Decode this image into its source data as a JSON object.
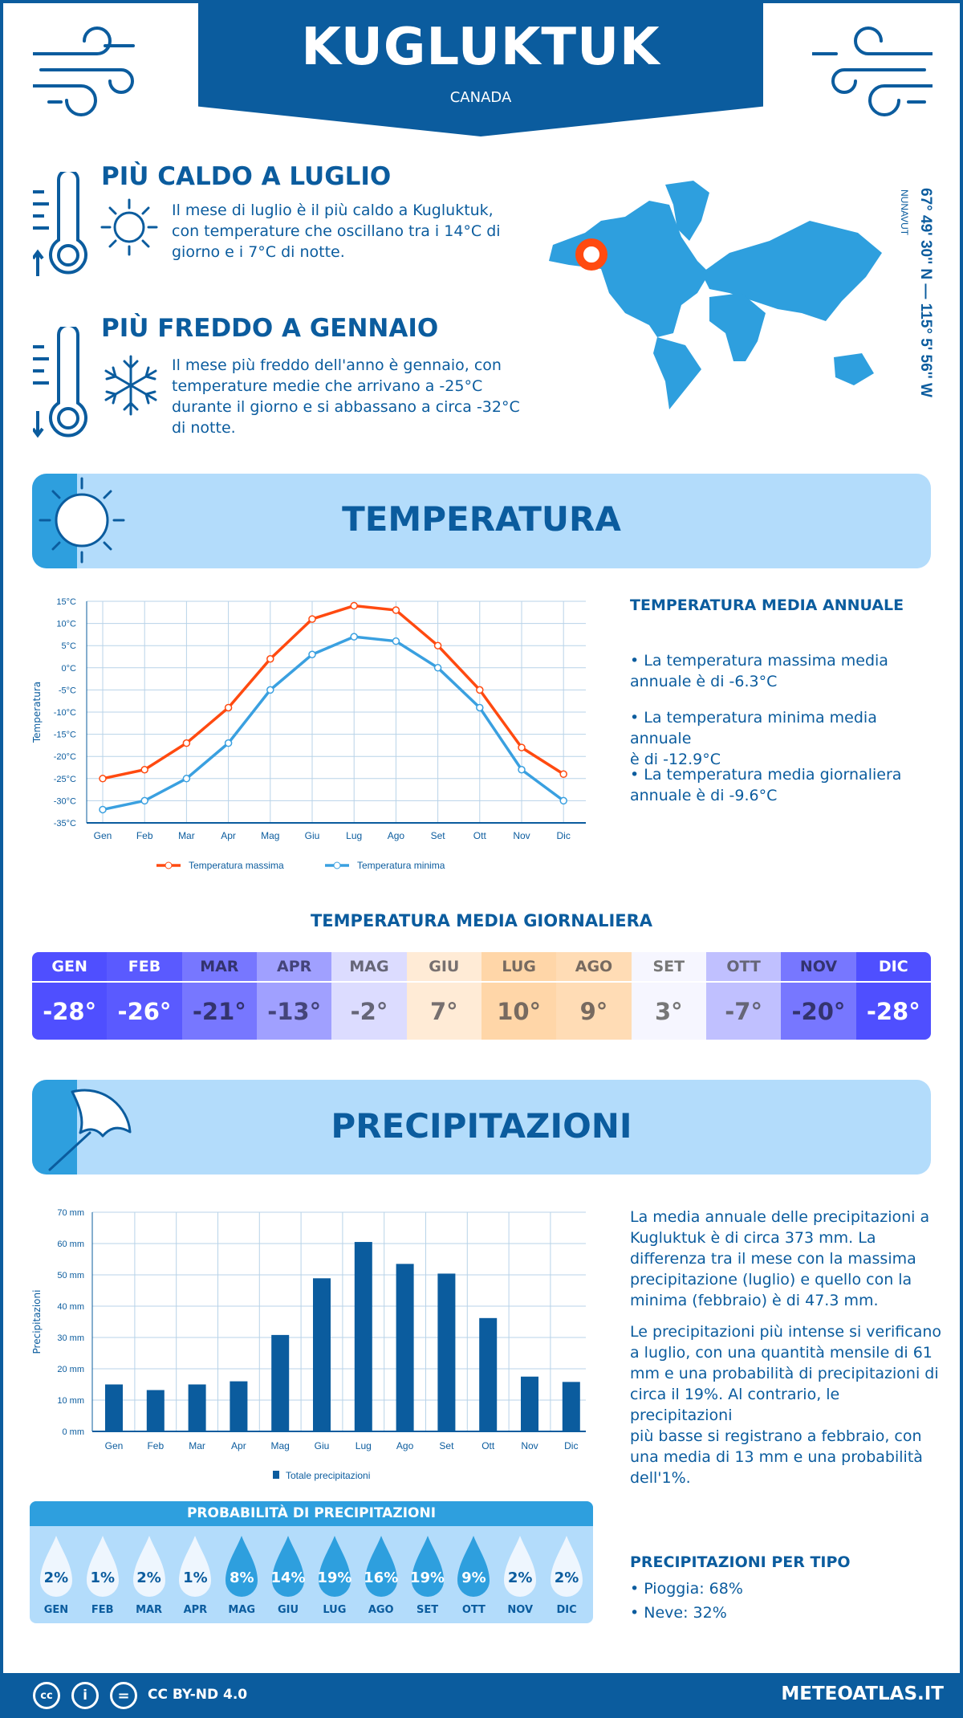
{
  "header": {
    "title": "KUGLUKTUK",
    "country": "CANADA"
  },
  "warmest": {
    "title": "PIÙ CALDO A LUGLIO",
    "lines": [
      "Il mese di luglio è il più caldo a Kugluktuk,",
      "con temperature che oscillano tra i 14°C di",
      "giorno e i 7°C di notte."
    ]
  },
  "coldest": {
    "title": "PIÙ FREDDO A GENNAIO",
    "lines": [
      "Il mese più freddo dell'anno è gennaio, con",
      "temperature medie che arrivano a -25°C",
      "durante il giorno e si abbassano a circa -32°C",
      "di notte."
    ]
  },
  "map": {
    "region": "NUNAVUT",
    "coordinates": "67° 49' 30'' N — 115° 5' 56'' W",
    "marker_color": "#ff4a10",
    "land_color": "#2e9fde"
  },
  "temperature_section": {
    "title": "TEMPERATURA",
    "annual_title": "TEMPERATURA MEDIA ANNUALE",
    "bullets": [
      [
        "• La temperatura massima media",
        "annuale è di -6.3°C"
      ],
      [
        "• La temperatura minima media annuale",
        "è di -12.9°C"
      ],
      [
        "• La temperatura media giornaliera",
        "annuale è di -9.6°C"
      ]
    ],
    "daily_title": "TEMPERATURA MEDIA GIORNALIERA",
    "daily": [
      {
        "m": "GEN",
        "v": "-28°",
        "bg": "#4f4fff",
        "fg": "#ffffff"
      },
      {
        "m": "FEB",
        "v": "-26°",
        "bg": "#5a5aff",
        "fg": "#ffffff"
      },
      {
        "m": "MAR",
        "v": "-21°",
        "bg": "#7777ff",
        "fg": "#33336e"
      },
      {
        "m": "APR",
        "v": "-13°",
        "bg": "#a0a0ff",
        "fg": "#44447a"
      },
      {
        "m": "MAG",
        "v": "-2°",
        "bg": "#dcdcff",
        "fg": "#666677"
      },
      {
        "m": "GIU",
        "v": "7°",
        "bg": "#ffebd6",
        "fg": "#777070"
      },
      {
        "m": "LUG",
        "v": "10°",
        "bg": "#ffd6a8",
        "fg": "#776a60"
      },
      {
        "m": "AGO",
        "v": "9°",
        "bg": "#ffdcb5",
        "fg": "#776a60"
      },
      {
        "m": "SET",
        "v": "3°",
        "bg": "#f6f6ff",
        "fg": "#777777"
      },
      {
        "m": "OTT",
        "v": "-7°",
        "bg": "#c0c0ff",
        "fg": "#666677"
      },
      {
        "m": "NOV",
        "v": "-20°",
        "bg": "#7777ff",
        "fg": "#33336e"
      },
      {
        "m": "DIC",
        "v": "-28°",
        "bg": "#4f4fff",
        "fg": "#ffffff"
      }
    ]
  },
  "precip_section": {
    "title": "PRECIPITAZIONI",
    "text1": [
      "La media annuale delle precipitazioni a",
      "Kugluktuk è di circa 373 mm. La",
      "differenza tra il mese con la massima",
      "precipitazione (luglio) e quello con la",
      "minima (febbraio) è di 47.3 mm."
    ],
    "text2": [
      "Le precipitazioni più intense si verificano",
      "a luglio, con una quantità mensile di 61",
      "mm e una probabilità di precipitazioni di",
      "circa il 19%. Al contrario, le precipitazioni",
      "più basse si registrano a febbraio, con",
      "una media di 13 mm e una probabilità",
      "dell'1%."
    ],
    "prob_title": "PROBABILITÀ DI PRECIPITAZIONI",
    "prob": [
      {
        "m": "GEN",
        "p": "2%"
      },
      {
        "m": "FEB",
        "p": "1%"
      },
      {
        "m": "MAR",
        "p": "2%"
      },
      {
        "m": "APR",
        "p": "1%"
      },
      {
        "m": "MAG",
        "p": "8%"
      },
      {
        "m": "GIU",
        "p": "14%"
      },
      {
        "m": "LUG",
        "p": "19%"
      },
      {
        "m": "AGO",
        "p": "16%"
      },
      {
        "m": "SET",
        "p": "19%"
      },
      {
        "m": "OTT",
        "p": "9%"
      },
      {
        "m": "NOV",
        "p": "2%"
      },
      {
        "m": "DIC",
        "p": "2%"
      }
    ],
    "type_title": "PRECIPITAZIONI PER TIPO",
    "types": [
      "• Pioggia: 68%",
      "• Neve: 32%"
    ]
  },
  "footer": {
    "license": "CC BY-ND 4.0",
    "site": "METEOATLAS.IT",
    "cc": "cc",
    "by": "i",
    "nd": "="
  },
  "chart_data": [
    {
      "type": "line",
      "categories": [
        "Gen",
        "Feb",
        "Mar",
        "Apr",
        "Mag",
        "Giu",
        "Lug",
        "Ago",
        "Set",
        "Ott",
        "Nov",
        "Dic"
      ],
      "ylabel": "Temperatura",
      "ylim": [
        -35,
        15
      ],
      "yticks": [
        "15°C",
        "10°C",
        "5°C",
        "0°C",
        "-5°C",
        "-10°C",
        "-15°C",
        "-20°C",
        "-25°C",
        "-30°C",
        "-35°C"
      ],
      "grid": true,
      "legend_position": "bottom",
      "series": [
        {
          "name": "Temperatura massima",
          "color": "#ff4a10",
          "values": [
            -25,
            -23,
            -17,
            -9,
            2,
            11,
            14,
            13,
            5,
            -5,
            -18,
            -24
          ]
        },
        {
          "name": "Temperatura minima",
          "color": "#3aa0e0",
          "values": [
            -32,
            -30,
            -25,
            -17,
            -5,
            3,
            7,
            6,
            0,
            -9,
            -23,
            -30
          ]
        }
      ]
    },
    {
      "type": "bar",
      "categories": [
        "Gen",
        "Feb",
        "Mar",
        "Apr",
        "Mag",
        "Giu",
        "Lug",
        "Ago",
        "Set",
        "Ott",
        "Nov",
        "Dic"
      ],
      "ylabel": "Precipitazioni",
      "ylim": [
        0,
        70
      ],
      "yticks": [
        "70 mm",
        "60 mm",
        "50 mm",
        "40 mm",
        "30 mm",
        "20 mm",
        "10 mm",
        "0 mm"
      ],
      "grid": true,
      "legend_position": "bottom",
      "series": [
        {
          "name": "Totale precipitazioni",
          "color": "#0b5c9e",
          "values": [
            15,
            13.2,
            15,
            16,
            30.8,
            48.9,
            60.5,
            53.5,
            50.4,
            36.2,
            17.5,
            15.8
          ]
        }
      ]
    }
  ]
}
